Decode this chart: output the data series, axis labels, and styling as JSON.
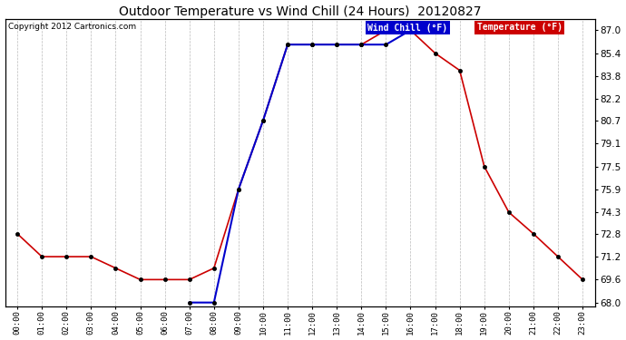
{
  "title": "Outdoor Temperature vs Wind Chill (24 Hours)  20120827",
  "copyright": "Copyright 2012 Cartronics.com",
  "hours": [
    "00:00",
    "01:00",
    "02:00",
    "03:00",
    "04:00",
    "05:00",
    "06:00",
    "07:00",
    "08:00",
    "09:00",
    "10:00",
    "11:00",
    "12:00",
    "13:00",
    "14:00",
    "15:00",
    "16:00",
    "17:00",
    "18:00",
    "19:00",
    "20:00",
    "21:00",
    "22:00",
    "23:00"
  ],
  "temp_F": [
    72.8,
    71.2,
    71.2,
    71.2,
    70.4,
    69.6,
    69.6,
    69.6,
    70.4,
    75.9,
    80.7,
    86.0,
    86.0,
    86.0,
    86.0,
    87.0,
    87.0,
    85.4,
    84.2,
    77.5,
    74.3,
    72.8,
    71.2,
    69.6
  ],
  "wind_chill_F": [
    null,
    null,
    null,
    null,
    null,
    null,
    null,
    68.0,
    68.0,
    75.9,
    80.7,
    86.0,
    86.0,
    86.0,
    86.0,
    86.0,
    87.0,
    null,
    null,
    null,
    null,
    null,
    null,
    null
  ],
  "temp_color": "#cc0000",
  "wind_chill_color": "#0000cc",
  "marker_color": "#000000",
  "bg_color": "#ffffff",
  "grid_color": "#aaaaaa",
  "ylim_min": 68.0,
  "ylim_max": 87.0,
  "yticks": [
    68.0,
    69.6,
    71.2,
    72.8,
    74.3,
    75.9,
    77.5,
    79.1,
    80.7,
    82.2,
    83.8,
    85.4,
    87.0
  ],
  "legend_wind_label": "Wind Chill (°F)",
  "legend_temp_label": "Temperature (°F)",
  "legend_wind_bg": "#0000cc",
  "legend_temp_bg": "#cc0000",
  "figwidth": 6.9,
  "figheight": 3.75,
  "dpi": 100
}
